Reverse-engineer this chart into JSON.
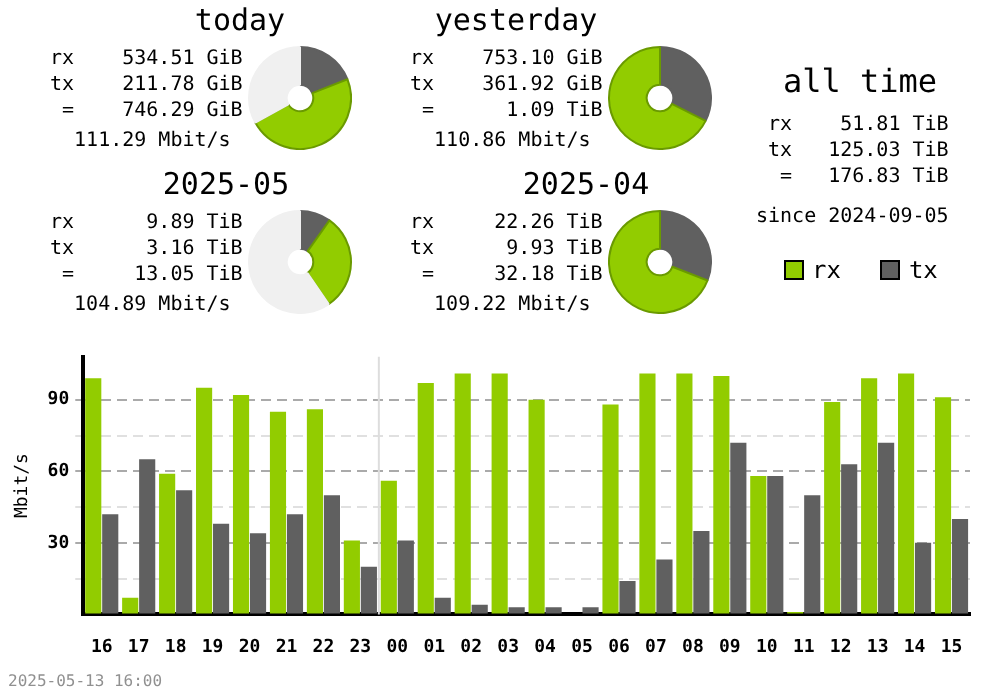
{
  "chart_data": [
    {
      "type": "donut",
      "title": "today",
      "values": [
        19,
        48,
        33
      ],
      "colors": [
        "#606060",
        "#92cc00",
        "#f0f0f0"
      ],
      "annotations": [
        "rx    534.51 GiB",
        "tx    211.78 GiB",
        " =    746.29 GiB",
        "  111.29 Mbit/s"
      ]
    },
    {
      "type": "donut",
      "title": "yesterday",
      "values": [
        32.4,
        67.6
      ],
      "colors": [
        "#606060",
        "#92cc00"
      ],
      "annotations": [
        "rx    753.10 GiB",
        "tx    361.92 GiB",
        " =      1.09 TiB",
        "  110.86 Mbit/s"
      ]
    },
    {
      "type": "other",
      "title": "all time",
      "annotations": [
        "rx    51.81 TiB",
        "tx   125.03 TiB",
        " =   176.83 TiB",
        "since 2024-09-05"
      ]
    },
    {
      "type": "donut",
      "title": "2025-05",
      "values": [
        9.8,
        30.7,
        59.5
      ],
      "colors": [
        "#606060",
        "#92cc00",
        "#f0f0f0"
      ],
      "annotations": [
        "rx      9.89 TiB",
        "tx      3.16 TiB",
        " =     13.05 TiB",
        "  104.89 Mbit/s"
      ]
    },
    {
      "type": "donut",
      "title": "2025-04",
      "values": [
        30.9,
        69.1
      ],
      "colors": [
        "#606060",
        "#92cc00"
      ],
      "annotations": [
        "rx     22.26 TiB",
        "tx      9.93 TiB",
        " =     32.18 TiB",
        "  109.22 Mbit/s"
      ]
    },
    {
      "type": "bar",
      "ylabel": "Mbit/s",
      "categories": [
        "16",
        "17",
        "18",
        "19",
        "20",
        "21",
        "22",
        "23",
        "00",
        "01",
        "02",
        "03",
        "04",
        "05",
        "06",
        "07",
        "08",
        "09",
        "10",
        "11",
        "12",
        "13",
        "14",
        "15"
      ],
      "series": [
        {
          "name": "rx",
          "color": "#92cc00",
          "values": [
            99,
            7,
            59,
            95,
            92,
            85,
            86,
            31,
            56,
            97,
            101,
            101,
            90,
            0,
            88,
            101,
            101,
            100,
            58,
            1,
            89,
            99,
            101,
            91
          ]
        },
        {
          "name": "tx",
          "color": "#606060",
          "values": [
            42,
            65,
            52,
            38,
            34,
            42,
            50,
            20,
            31,
            7,
            4,
            3,
            3,
            3,
            14,
            23,
            35,
            72,
            58,
            50,
            63,
            72,
            30,
            40
          ]
        }
      ],
      "ylim": [
        0,
        108
      ],
      "yticks": [
        {
          "value": 0,
          "label": null
        },
        {
          "value": 15,
          "label": null
        },
        30,
        {
          "value": 45,
          "label": null
        },
        60,
        {
          "value": 75,
          "label": null
        },
        90
      ],
      "grid": "y",
      "legend": "top right",
      "ref_lines": [
        {
          "axis": "x",
          "value": "00",
          "color": "#dddddd"
        }
      ],
      "annotations": [
        "2025-05-13 16:00"
      ]
    }
  ]
}
